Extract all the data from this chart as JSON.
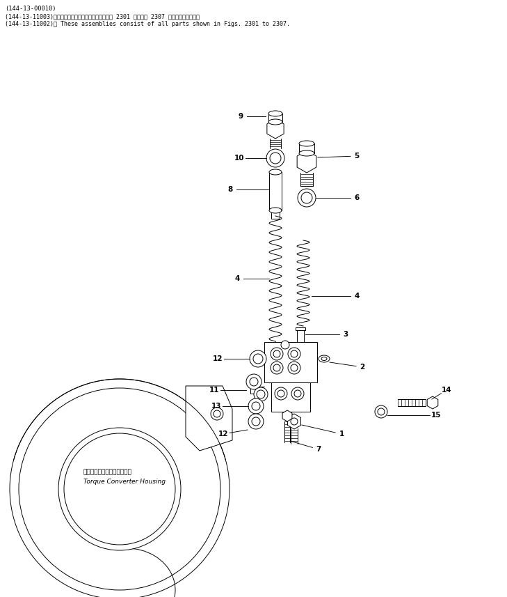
{
  "bg_color": "#ffffff",
  "line_color": "#000000",
  "fig_width": 7.29,
  "fig_height": 8.57,
  "header_line1": "(144-13-00010)",
  "header_line2": "(144-13-11003)　これらのアセンブリの構成部品は第 2301 図から第 2307 図までですみます．",
  "header_line3": "(144-13-11002)： These assemblies consist of all parts shown in Figs. 2301 to 2307.",
  "housing_label_jp": "トルクコンバータハウジング",
  "housing_label_en": "Torque Converter Housing",
  "lw": 0.7
}
